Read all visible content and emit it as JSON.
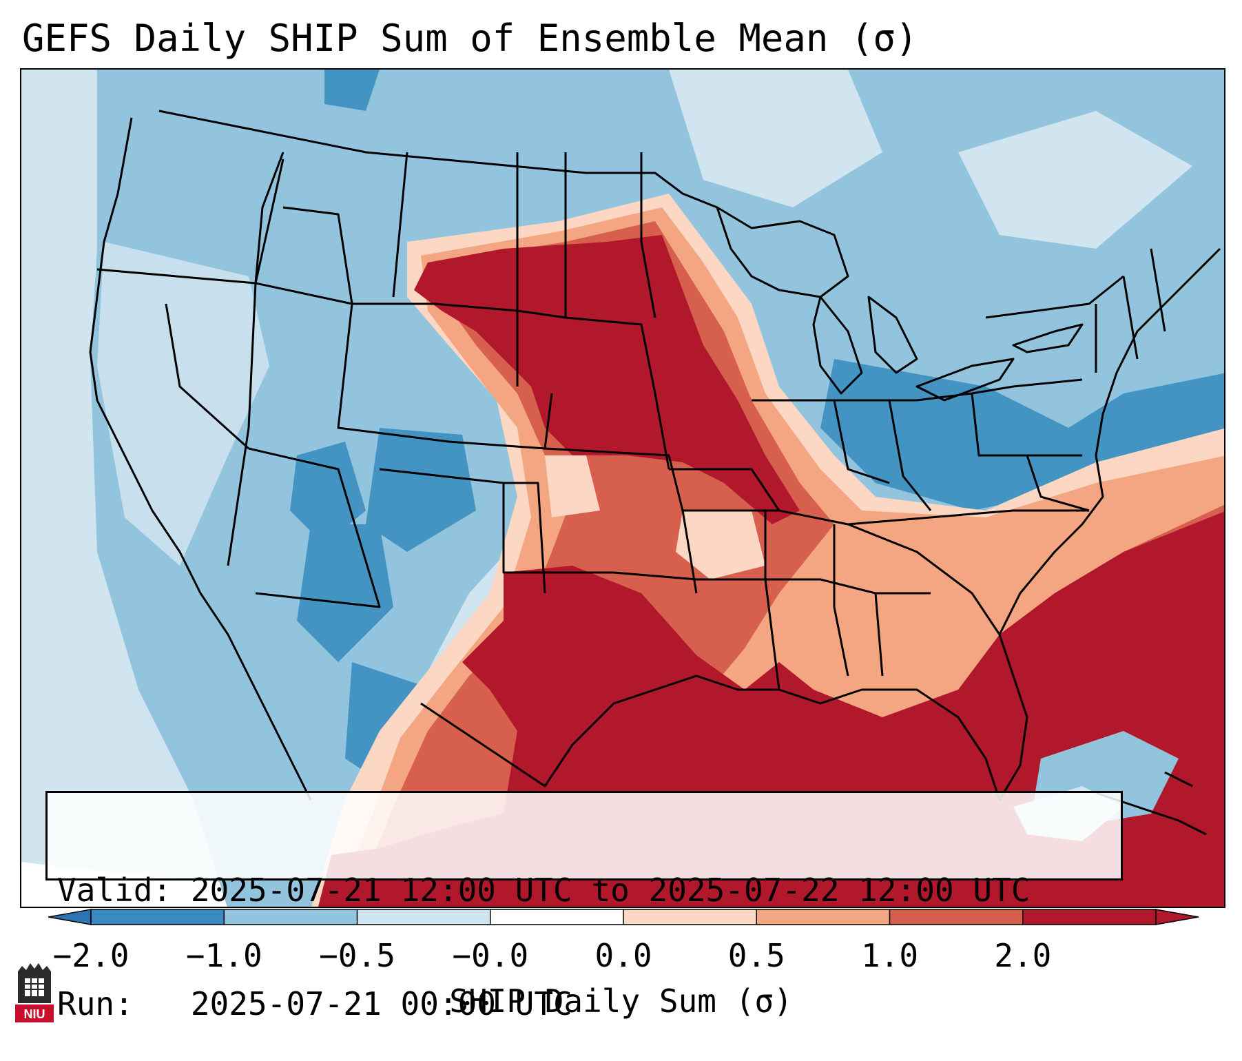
{
  "title": "GEFS Daily SHIP Sum of Ensemble Mean (σ)",
  "map": {
    "region": "CONUS",
    "variable": "SHIP daily sum, ensemble-mean standardized anomaly"
  },
  "info": {
    "valid_line": "Valid: 2025-07-21 12:00 UTC to 2025-07-22 12:00 UTC",
    "run_line": "Run:   2025-07-21 00:00 UTC"
  },
  "colorbar": {
    "label": "SHIP Daily Sum (σ)",
    "ticks": [
      "−2.0",
      "−1.0",
      "−0.5",
      "−0.0",
      "0.0",
      "0.5",
      "1.0",
      "2.0"
    ],
    "colors": [
      "#3a8ac4",
      "#92c4de",
      "#d1e5f0",
      "#ffffff",
      "#fbd7c4",
      "#f4a582",
      "#d6604d",
      "#b2182b"
    ],
    "extend_low": "#2e73b2",
    "extend_high": "#b2182b"
  },
  "logo": {
    "text": "NIU"
  }
}
